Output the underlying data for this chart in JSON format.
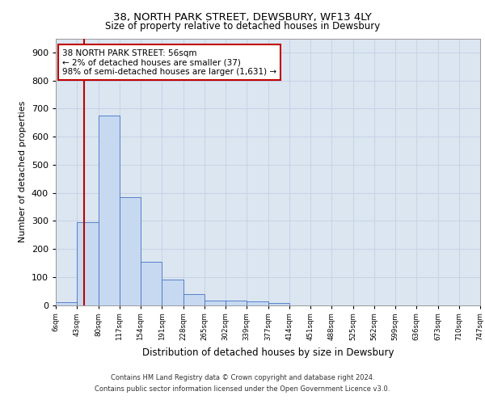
{
  "title1": "38, NORTH PARK STREET, DEWSBURY, WF13 4LY",
  "title2": "Size of property relative to detached houses in Dewsbury",
  "xlabel": "Distribution of detached houses by size in Dewsbury",
  "ylabel": "Number of detached properties",
  "bin_labels": [
    "6sqm",
    "43sqm",
    "80sqm",
    "117sqm",
    "154sqm",
    "191sqm",
    "228sqm",
    "265sqm",
    "302sqm",
    "339sqm",
    "377sqm",
    "414sqm",
    "451sqm",
    "488sqm",
    "525sqm",
    "562sqm",
    "599sqm",
    "636sqm",
    "673sqm",
    "710sqm",
    "747sqm"
  ],
  "bar_values": [
    10,
    295,
    675,
    385,
    155,
    90,
    38,
    15,
    15,
    12,
    8,
    0,
    0,
    0,
    0,
    0,
    0,
    0,
    0,
    0
  ],
  "bar_color": "#c6d9f1",
  "bar_edge_color": "#4472c4",
  "grid_color": "#c8d4e8",
  "bg_color": "#dce6f1",
  "vline_color": "#c00000",
  "annotation_lines": [
    "38 NORTH PARK STREET: 56sqm",
    "← 2% of detached houses are smaller (37)",
    "98% of semi-detached houses are larger (1,631) →"
  ],
  "footer1": "Contains HM Land Registry data © Crown copyright and database right 2024.",
  "footer2": "Contains public sector information licensed under the Open Government Licence v3.0.",
  "ylim": [
    0,
    950
  ],
  "yticks": [
    0,
    100,
    200,
    300,
    400,
    500,
    600,
    700,
    800,
    900
  ]
}
